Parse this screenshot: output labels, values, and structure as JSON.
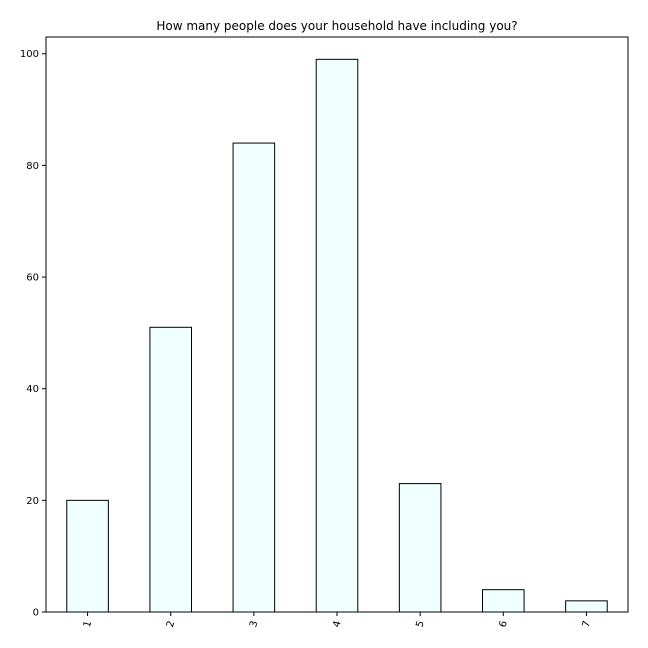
{
  "chart_data": {
    "type": "bar",
    "title": "How many people does your household have including you?",
    "xlabel": "",
    "ylabel": "",
    "categories": [
      "1",
      "2",
      "3",
      "4",
      "5",
      "6",
      "7"
    ],
    "values": [
      20,
      51,
      84,
      99,
      23,
      4,
      2
    ],
    "ylim": [
      0,
      103
    ],
    "yticks": [
      0,
      20,
      40,
      60,
      80,
      100
    ],
    "x_tick_rotation": 75,
    "grid": false,
    "legend": "none",
    "bar_fill": "#f0ffff",
    "bar_edge": "#000000"
  }
}
